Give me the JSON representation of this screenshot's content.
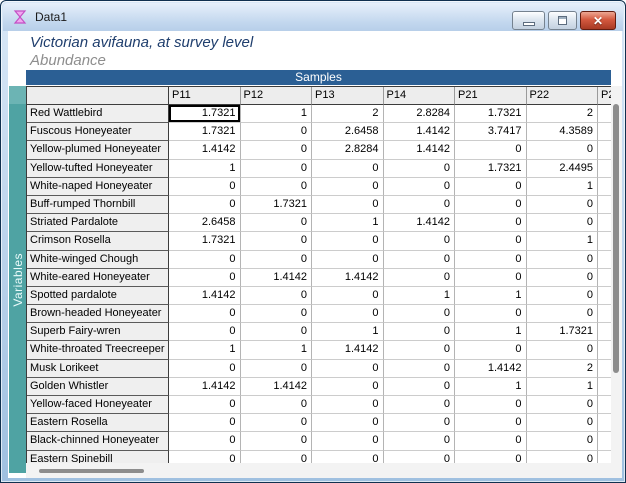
{
  "window": {
    "title": "Data1",
    "minimize_label": "minimize",
    "restore_label": "restore",
    "close_label": "✕"
  },
  "header": {
    "line1": "Victorian avifauna, at survey level",
    "line2": "Abundance"
  },
  "table": {
    "samples_label": "Samples",
    "variables_label": "Variables",
    "columns": [
      "P11",
      "P12",
      "P13",
      "P14",
      "P21",
      "P22",
      "P2"
    ],
    "selected": {
      "row": 0,
      "col": 0
    },
    "rows": [
      {
        "label": "Red Wattlebird",
        "values": [
          "1.7321",
          "1",
          "2",
          "2.8284",
          "1.7321",
          "2",
          ""
        ]
      },
      {
        "label": "Fuscous Honeyeater",
        "values": [
          "1.7321",
          "0",
          "2.6458",
          "1.4142",
          "3.7417",
          "4.3589",
          ""
        ]
      },
      {
        "label": "Yellow-plumed Honeyeater",
        "values": [
          "1.4142",
          "0",
          "2.8284",
          "1.4142",
          "0",
          "0",
          ""
        ]
      },
      {
        "label": "Yellow-tufted Honeyeater",
        "values": [
          "1",
          "0",
          "0",
          "0",
          "1.7321",
          "2.4495",
          ""
        ]
      },
      {
        "label": "White-naped Honeyeater",
        "values": [
          "0",
          "0",
          "0",
          "0",
          "0",
          "1",
          ""
        ]
      },
      {
        "label": "Buff-rumped Thornbill",
        "values": [
          "0",
          "1.7321",
          "0",
          "0",
          "0",
          "0",
          ""
        ]
      },
      {
        "label": "Striated Pardalote",
        "values": [
          "2.6458",
          "0",
          "1",
          "1.4142",
          "0",
          "0",
          ""
        ]
      },
      {
        "label": "Crimson Rosella",
        "values": [
          "1.7321",
          "0",
          "0",
          "0",
          "0",
          "1",
          ""
        ]
      },
      {
        "label": "White-winged Chough",
        "values": [
          "0",
          "0",
          "0",
          "0",
          "0",
          "0",
          ""
        ]
      },
      {
        "label": "White-eared Honeyeater",
        "values": [
          "0",
          "1.4142",
          "1.4142",
          "0",
          "0",
          "0",
          ""
        ]
      },
      {
        "label": "Spotted pardalote",
        "values": [
          "1.4142",
          "0",
          "0",
          "1",
          "1",
          "0",
          ""
        ]
      },
      {
        "label": "Brown-headed Honeyeater",
        "values": [
          "0",
          "0",
          "0",
          "0",
          "0",
          "0",
          ""
        ]
      },
      {
        "label": "Superb Fairy-wren",
        "values": [
          "0",
          "0",
          "1",
          "0",
          "1",
          "1.7321",
          ""
        ]
      },
      {
        "label": "White-throated Treecreeper",
        "values": [
          "1",
          "1",
          "1.4142",
          "0",
          "0",
          "0",
          ""
        ]
      },
      {
        "label": "Musk Lorikeet",
        "values": [
          "0",
          "0",
          "0",
          "0",
          "1.4142",
          "2",
          ""
        ]
      },
      {
        "label": "Golden Whistler",
        "values": [
          "1.4142",
          "1.4142",
          "0",
          "0",
          "1",
          "1",
          ""
        ]
      },
      {
        "label": "Yellow-faced Honeyeater",
        "values": [
          "0",
          "0",
          "0",
          "0",
          "0",
          "0",
          ""
        ]
      },
      {
        "label": "Eastern Rosella",
        "values": [
          "0",
          "0",
          "0",
          "0",
          "0",
          "0",
          ""
        ]
      },
      {
        "label": "Black-chinned Honeyeater",
        "values": [
          "0",
          "0",
          "0",
          "0",
          "0",
          "0",
          ""
        ]
      },
      {
        "label": "Eastern Spinebill",
        "values": [
          "0",
          "0",
          "0",
          "0",
          "0",
          "0",
          ""
        ]
      }
    ]
  },
  "colors": {
    "samples_band": "#2b5f94",
    "variables_band": "#4fa3a3",
    "title_text": "#1f3e6d",
    "subtitle_text": "#8e8e8e",
    "close_button_red": "#c14a33",
    "icon_magenta": "#d45cd4"
  }
}
